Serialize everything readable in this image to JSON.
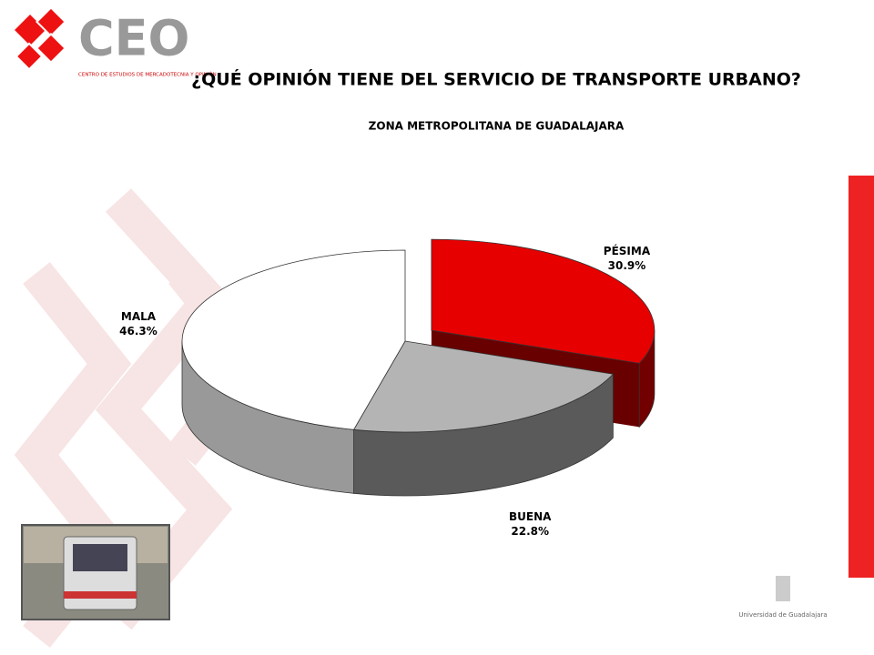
{
  "logo": {
    "name": "CEO",
    "caption": "CENTRO DE ESTUDIOS DE MERCADOTECNIA Y OPINIÓN"
  },
  "footer": {
    "university": "Universidad de Guadalajara"
  },
  "chart_data": {
    "type": "pie",
    "title": "¿QUÉ OPINIÓN TIENE DEL SERVICIO DE TRANSPORTE URBANO?",
    "subtitle": "ZONA METROPOLITANA DE GUADALAJARA",
    "categories": [
      "PÉSIMA",
      "BUENA",
      "MALA"
    ],
    "values": [
      30.9,
      22.8,
      46.3
    ],
    "value_labels": [
      "30.9%",
      "22.8%",
      "46.3%"
    ],
    "colors": [
      "#e60000",
      "#b4b4b4",
      "#ffffff"
    ],
    "explode": [
      true,
      false,
      false
    ]
  }
}
